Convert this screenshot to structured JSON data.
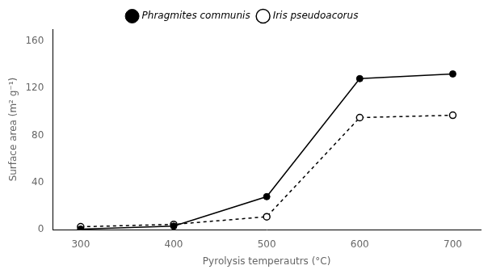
{
  "chart_data": {
    "type": "line",
    "x": [
      300,
      400,
      500,
      600,
      700
    ],
    "series": [
      {
        "name": "Phragmites communis",
        "color": "#000000",
        "values": [
          0.5,
          3.0,
          28.0,
          128.0,
          132.0
        ],
        "line_style": "solid",
        "marker": "filled_circle"
      },
      {
        "name": "Iris pseudoacorus",
        "color": "#000000",
        "values": [
          2.5,
          4.5,
          11.0,
          95.0,
          97.0
        ],
        "line_style": "dashed",
        "marker": "open_circle"
      }
    ],
    "xlabel": "Pyrolysis temperautrs (°C)",
    "ylabel": "Surface area (m² g⁻¹)",
    "xlim": [
      270,
      730
    ],
    "ylim": [
      0,
      170
    ],
    "xticks": [
      300,
      400,
      500,
      600,
      700
    ],
    "yticks": [
      0,
      40,
      80,
      120,
      160
    ],
    "grid": false,
    "legend": "top"
  }
}
